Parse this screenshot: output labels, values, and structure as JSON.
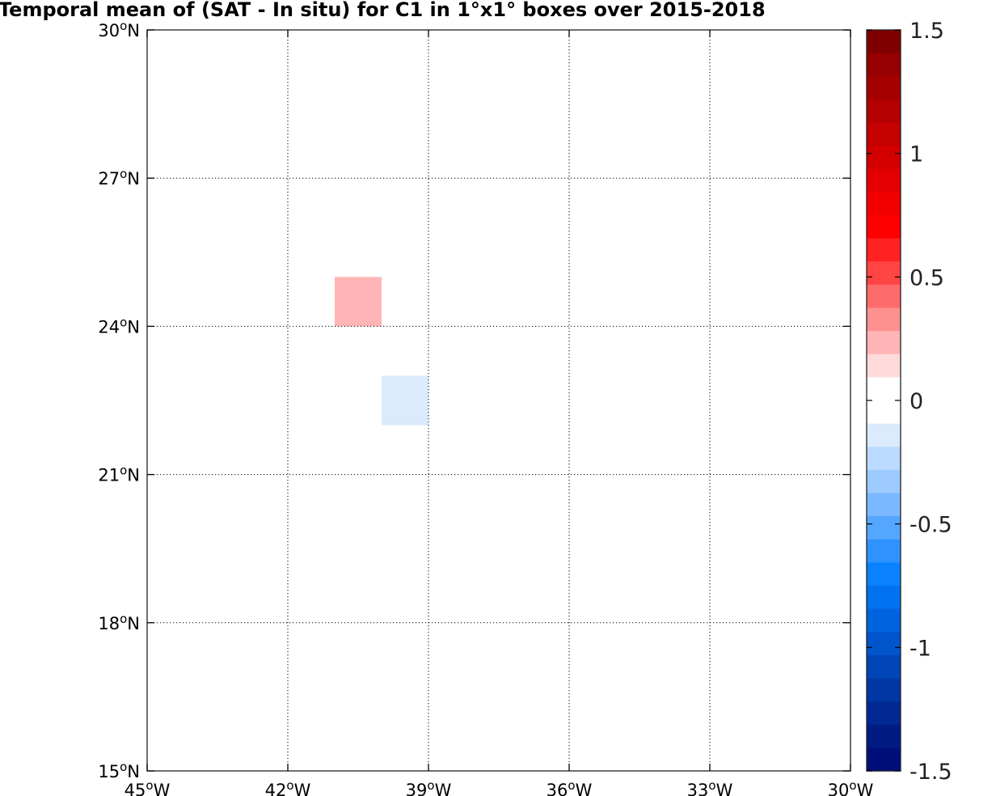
{
  "chart_data": {
    "type": "heatmap",
    "title": "Temporal mean of (SAT - In situ) for C1 in 1°x1° boxes over 2015-2018",
    "xlim": [
      -45,
      -30
    ],
    "ylim": [
      15,
      30
    ],
    "grid": true,
    "x_ticks": [
      {
        "value": -45,
        "deg": "45",
        "hemi": "W"
      },
      {
        "value": -42,
        "deg": "42",
        "hemi": "W"
      },
      {
        "value": -39,
        "deg": "39",
        "hemi": "W"
      },
      {
        "value": -36,
        "deg": "36",
        "hemi": "W"
      },
      {
        "value": -33,
        "deg": "33",
        "hemi": "W"
      },
      {
        "value": -30,
        "deg": "30",
        "hemi": "W"
      }
    ],
    "y_ticks": [
      {
        "value": 15,
        "deg": "15",
        "hemi": "N"
      },
      {
        "value": 18,
        "deg": "18",
        "hemi": "N"
      },
      {
        "value": 21,
        "deg": "21",
        "hemi": "N"
      },
      {
        "value": 24,
        "deg": "24",
        "hemi": "N"
      },
      {
        "value": 27,
        "deg": "27",
        "hemi": "N"
      },
      {
        "value": 30,
        "deg": "30",
        "hemi": "N"
      }
    ],
    "cells": [
      {
        "lon": [
          -41,
          -40
        ],
        "lat": [
          24,
          25
        ],
        "value": 0.25
      },
      {
        "lon": [
          -40,
          -39
        ],
        "lat": [
          22,
          23
        ],
        "value": -0.05
      }
    ],
    "colorbar": {
      "range": [
        -1.5,
        1.5
      ],
      "ticks": [
        1.5,
        1,
        0.5,
        0,
        -0.5,
        -1,
        -1.5
      ],
      "tick_labels": [
        "1.5",
        "1",
        "0.5",
        "0",
        "-0.5",
        "-1",
        "-1.5"
      ],
      "colors_top_to_bottom": [
        "#800000",
        "#960000",
        "#a50000",
        "#b40000",
        "#c40000",
        "#d40000",
        "#e40000",
        "#f20000",
        "#ff0000",
        "#ff2222",
        "#ff4444",
        "#ff6b6b",
        "#ff9090",
        "#ffb5b5",
        "#ffdada",
        "#ffffff",
        "#ffffff",
        "#dbeafd",
        "#bcdaff",
        "#9ccaff",
        "#7ab8ff",
        "#54a6ff",
        "#2e93ff",
        "#0a82ff",
        "#0072f0",
        "#0063de",
        "#0054cc",
        "#0045b8",
        "#0037a5",
        "#002993",
        "#001b84",
        "#000e7a"
      ]
    },
    "cell_colors": [
      "#ffb5b5",
      "#dbeafd"
    ]
  }
}
